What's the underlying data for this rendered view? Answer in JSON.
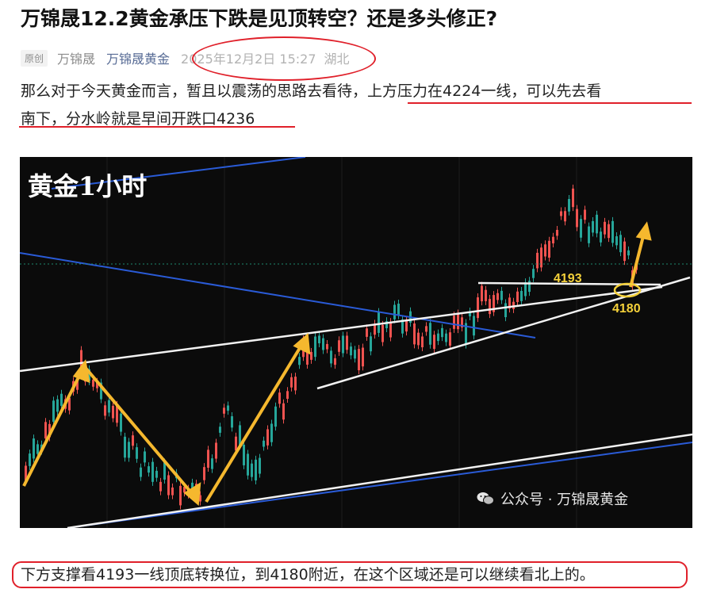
{
  "article": {
    "title": "万锦晟12.2黄金承压下跌是见顶转空？还是多头修正?",
    "meta": {
      "badge": "原创",
      "author": "万锦晟",
      "account": "万锦晟黄金",
      "date": "2025年12月2日 15:27",
      "location": "湖北"
    },
    "paragraph": {
      "part1": "那么对于今天黄金而言，暂且以震荡的思路去看待",
      "part2": "，上方压力在4224一线，可以先去看",
      "part3": "南下，分水岭就是早间开跌口4236"
    },
    "chart": {
      "title": "黄金1小时",
      "label_4193": "4193",
      "label_4180": "4180",
      "watermark": "公众号 · 万锦晟黄金"
    },
    "bottom_text": "下方支撑看4193一线顶底转换位，到4180附近，在这个区域还是可以继续看北上的。"
  },
  "colors": {
    "highlight_red": "#e0202a",
    "bull_candle": "#26a69a",
    "bear_candle": "#ef5350",
    "trend_blue": "#2a5bd7",
    "arrow_yellow": "#f5b82e",
    "link_blue": "#576b95"
  },
  "icons": {
    "watermark": "wechat-icon"
  }
}
